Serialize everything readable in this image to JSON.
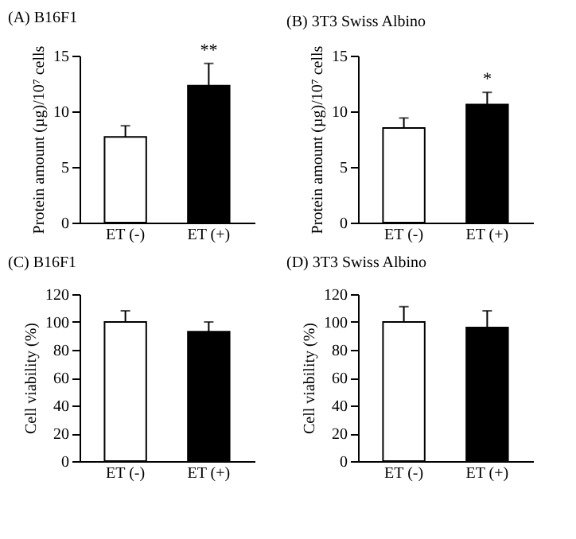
{
  "chart_data": [
    {
      "type": "bar",
      "title": "(A) B16F1",
      "ylabel": "Protein amount (µg)/10⁷ cells",
      "categories": [
        "ET (-)",
        "ET (+)"
      ],
      "values": [
        7.7,
        12.3
      ],
      "colors": [
        "#ffffff",
        "#000000"
      ],
      "errors": [
        [
          7.7,
          8.7
        ],
        [
          12.3,
          14.3
        ]
      ],
      "ylim": [
        0,
        15
      ],
      "yticks": [
        0,
        5,
        10,
        15
      ],
      "grid": false,
      "annotations": [
        {
          "text": "**",
          "x": "ET (+)",
          "y": 14.3
        }
      ]
    },
    {
      "type": "bar",
      "title": "(B) 3T3 Swiss Albino",
      "ylabel": "Protein amount (µg)/10⁷ cells",
      "categories": [
        "ET (-)",
        "ET (+)"
      ],
      "values": [
        8.5,
        10.6
      ],
      "colors": [
        "#ffffff",
        "#000000"
      ],
      "errors": [
        [
          8.5,
          9.4
        ],
        [
          10.6,
          11.7
        ]
      ],
      "ylim": [
        0,
        15
      ],
      "yticks": [
        0,
        5,
        10,
        15
      ],
      "grid": false,
      "annotations": [
        {
          "text": "*",
          "x": "ET (+)",
          "y": 11.7
        }
      ]
    },
    {
      "type": "bar",
      "title": "(C) B16F1",
      "ylabel": "Cell viability (%)",
      "categories": [
        "ET (-)",
        "ET (+)"
      ],
      "values": [
        100,
        93
      ],
      "colors": [
        "#ffffff",
        "#000000"
      ],
      "errors": [
        [
          100,
          108
        ],
        [
          93,
          100
        ]
      ],
      "ylim": [
        0,
        120
      ],
      "yticks": [
        0,
        20,
        40,
        60,
        80,
        100,
        120
      ],
      "grid": false
    },
    {
      "type": "bar",
      "title": "(D) 3T3 Swiss Albino",
      "ylabel": "Cell viability (%)",
      "categories": [
        "ET (-)",
        "ET (+)"
      ],
      "values": [
        100,
        96
      ],
      "colors": [
        "#ffffff",
        "#000000"
      ],
      "errors": [
        [
          100,
          111
        ],
        [
          96,
          108
        ]
      ],
      "ylim": [
        0,
        120
      ],
      "yticks": [
        0,
        20,
        40,
        60,
        80,
        100,
        120
      ],
      "grid": false
    }
  ]
}
